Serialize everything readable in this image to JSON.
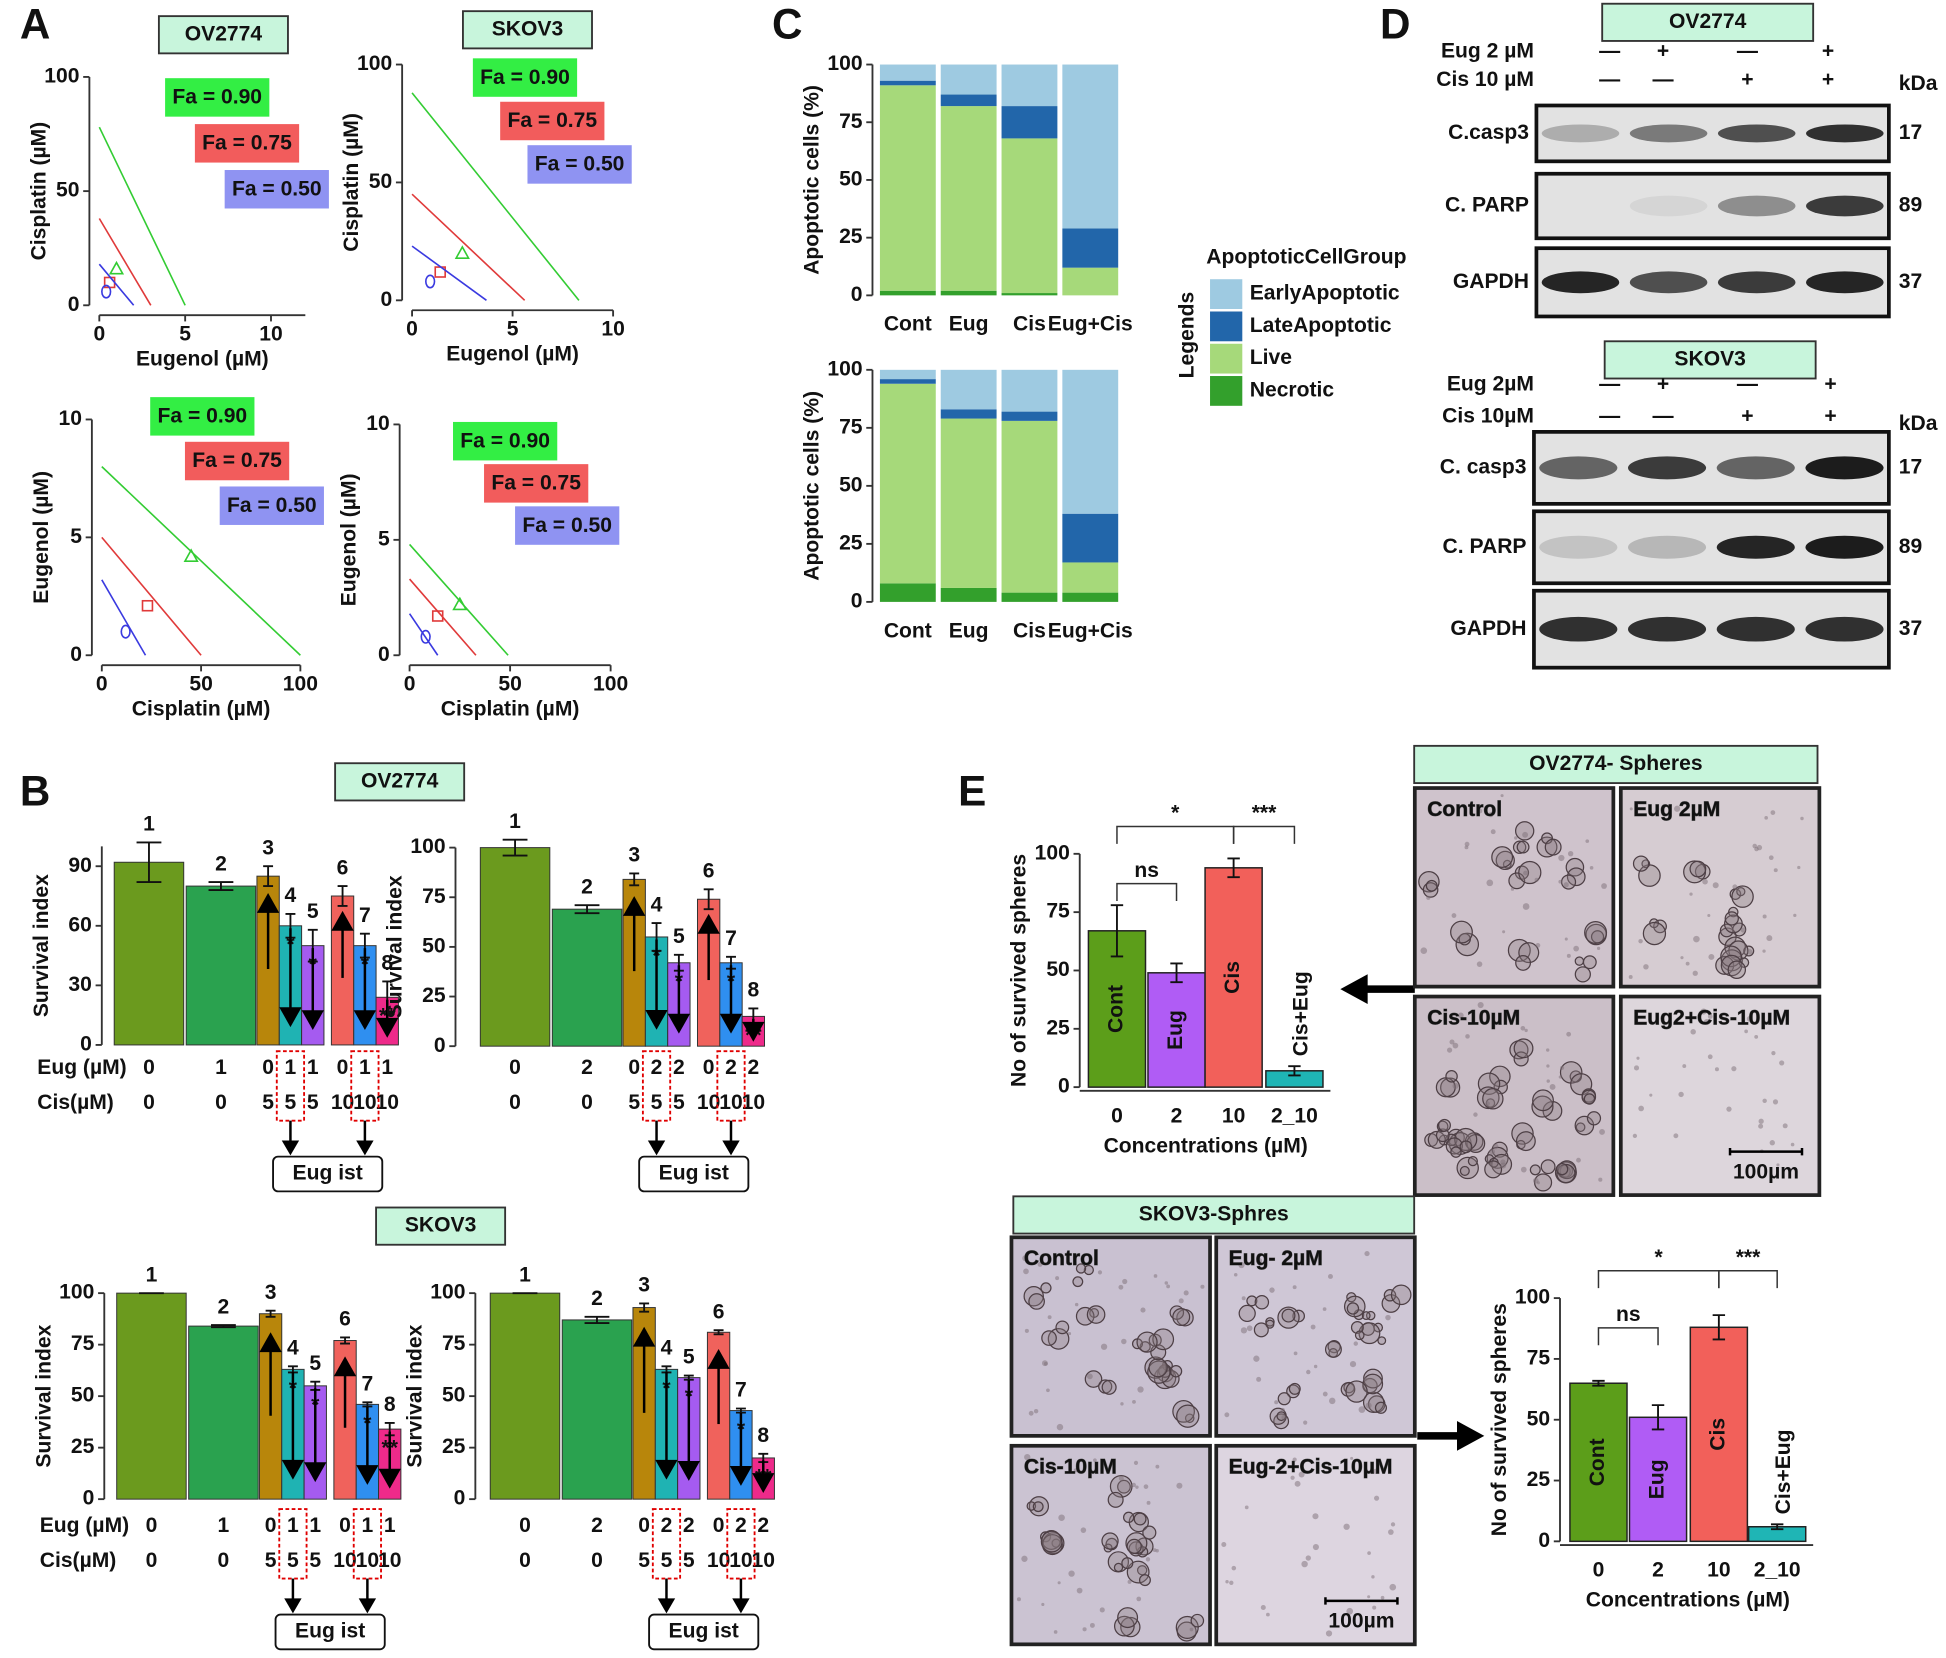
{
  "panel_labels": [
    "A",
    "B",
    "C",
    "D",
    "E"
  ],
  "chart_data": [
    {
      "type": "isobologram",
      "title": "OV2774",
      "xlabel": "Eugenol (µM)",
      "ylabel": "Cisplatin (µM)",
      "xlim": [
        0,
        12
      ],
      "xticks": [
        0,
        5,
        10
      ],
      "ylim": [
        0,
        100
      ],
      "yticks": [
        0,
        50,
        100
      ],
      "series": [
        {
          "name": "Fa = 0.90",
          "color": "#33cc33",
          "box_color": "#33ee44",
          "x": [
            0,
            5
          ],
          "values": [
            78,
            0
          ],
          "marker_x": 1,
          "marker_y": 16
        },
        {
          "name": "Fa = 0.75",
          "color": "#e03a3a",
          "box_color": "#f25c5c",
          "x": [
            0,
            3
          ],
          "values": [
            38,
            0
          ],
          "marker_x": 0.6,
          "marker_y": 10
        },
        {
          "name": "Fa = 0.50",
          "color": "#3a3ae0",
          "box_color": "#8f93f2",
          "x": [
            0,
            2
          ],
          "values": [
            18,
            0
          ],
          "marker_x": 0.4,
          "marker_y": 6
        }
      ]
    },
    {
      "type": "isobologram",
      "title": "SKOV3",
      "xlabel": "Eugenol (µM)",
      "ylabel": "Cisplatin (µM)",
      "xlim": [
        0,
        10
      ],
      "xticks": [
        0,
        5,
        10
      ],
      "ylim": [
        0,
        100
      ],
      "yticks": [
        0,
        50,
        100
      ],
      "series": [
        {
          "name": "Fa = 0.90",
          "color": "#33cc33",
          "box_color": "#33ee44",
          "x": [
            0,
            8.3
          ],
          "values": [
            88,
            0
          ],
          "marker_x": 2.5,
          "marker_y": 20
        },
        {
          "name": "Fa = 0.75",
          "color": "#e03a3a",
          "box_color": "#f25c5c",
          "x": [
            0,
            5.6
          ],
          "values": [
            45,
            0
          ],
          "marker_x": 1.4,
          "marker_y": 12
        },
        {
          "name": "Fa = 0.50",
          "color": "#3a3ae0",
          "box_color": "#8f93f2",
          "x": [
            0,
            3.7
          ],
          "values": [
            23,
            0
          ],
          "marker_x": 0.9,
          "marker_y": 8
        }
      ]
    },
    {
      "type": "isobologram",
      "xlabel": "Cisplatin (µM)",
      "ylabel": "Eugenol (µM)",
      "xlim": [
        0,
        100
      ],
      "xticks": [
        0,
        50,
        100
      ],
      "ylim": [
        0,
        10
      ],
      "yticks": [
        0,
        5,
        10
      ],
      "series": [
        {
          "name": "Fa = 0.90",
          "color": "#33cc33",
          "box_color": "#33ee44",
          "x": [
            0,
            100
          ],
          "values": [
            8,
            0
          ],
          "marker_x": 45,
          "marker_y": 4.2
        },
        {
          "name": "Fa = 0.75",
          "color": "#e03a3a",
          "box_color": "#f25c5c",
          "x": [
            0,
            50
          ],
          "values": [
            5,
            0
          ],
          "marker_x": 23,
          "marker_y": 2.1
        },
        {
          "name": "Fa = 0.50",
          "color": "#3a3ae0",
          "box_color": "#8f93f2",
          "x": [
            0,
            22
          ],
          "values": [
            3.2,
            0
          ],
          "marker_x": 12,
          "marker_y": 1
        }
      ]
    },
    {
      "type": "isobologram",
      "xlabel": "Cisplatin (µM)",
      "ylabel": "Eugenol (µM)",
      "xlim": [
        0,
        100
      ],
      "xticks": [
        0,
        50,
        100
      ],
      "ylim": [
        0,
        10
      ],
      "yticks": [
        0,
        5,
        10
      ],
      "series": [
        {
          "name": "Fa = 0.90",
          "color": "#33cc33",
          "box_color": "#33ee44",
          "x": [
            0,
            49
          ],
          "values": [
            4.8,
            0
          ],
          "marker_x": 25,
          "marker_y": 2.2
        },
        {
          "name": "Fa = 0.75",
          "color": "#e03a3a",
          "box_color": "#f25c5c",
          "x": [
            0,
            33
          ],
          "values": [
            3.3,
            0
          ],
          "marker_x": 14,
          "marker_y": 1.7
        },
        {
          "name": "Fa = 0.50",
          "color": "#3a3ae0",
          "box_color": "#8f93f2",
          "x": [
            0,
            14
          ],
          "values": [
            1.8,
            0
          ],
          "marker_x": 8,
          "marker_y": 0.8
        }
      ]
    },
    {
      "type": "stacked_bar",
      "ylabel": "Apoptotic cells (%)",
      "categories": [
        "Cont",
        "Eug",
        "Cis",
        "Eug+Cis"
      ],
      "ylim": [
        0,
        100
      ],
      "yticks": [
        0,
        25,
        50,
        75,
        100
      ],
      "legend_title": "ApoptoticCellGroup",
      "legend_label": "Legends",
      "series": [
        {
          "name": "EarlyApoptotic",
          "color": "#9ecae1",
          "values": [
            7,
            13,
            18,
            71
          ]
        },
        {
          "name": "LateApoptotic",
          "color": "#2266aa",
          "values": [
            2,
            5,
            14,
            17
          ]
        },
        {
          "name": "Live",
          "color": "#a6d97a",
          "values": [
            89,
            80,
            67,
            12
          ]
        },
        {
          "name": "Necrotic",
          "color": "#33a02c",
          "values": [
            2,
            2,
            1,
            0
          ]
        }
      ]
    },
    {
      "type": "stacked_bar",
      "ylabel": "Apoptotic cells (%)",
      "categories": [
        "Cont",
        "Eug",
        "Cis",
        "Eug+Cis"
      ],
      "ylim": [
        0,
        100
      ],
      "yticks": [
        0,
        25,
        50,
        75,
        100
      ],
      "series": [
        {
          "color": "#9ecae1",
          "values": [
            4,
            17,
            18,
            62
          ]
        },
        {
          "color": "#2266aa",
          "values": [
            2,
            4,
            4,
            21
          ]
        },
        {
          "color": "#a6d97a",
          "values": [
            86,
            73,
            74,
            13
          ]
        },
        {
          "color": "#33a02c",
          "values": [
            8,
            6,
            4,
            4
          ]
        }
      ]
    },
    {
      "type": "bar",
      "title": "OV2774",
      "ylabel": "Survival index",
      "categories": [
        "1",
        "2",
        "3",
        "4",
        "5",
        "6",
        "7",
        "8"
      ],
      "values": [
        92,
        80,
        85,
        60,
        50,
        75,
        50,
        24
      ],
      "errors": [
        10,
        2,
        5,
        6,
        8,
        5,
        6,
        8
      ],
      "colors": [
        "#6b9a1e",
        "#2aa24f",
        "#b8860b",
        "#1fb3b3",
        "#a55bf0",
        "#f0625c",
        "#2f8ff0",
        "#ee2a8a"
      ],
      "label_colors": [
        "#2e7d32",
        "#2e8b57",
        "#8b5a2b",
        "#20999a",
        "#a020f0",
        "#b5452a",
        "#1e6fff",
        "#e0115f"
      ],
      "annotations": [
        null,
        null,
        null,
        "*",
        "*",
        null,
        "*",
        "**"
      ],
      "ylim": [
        0,
        100
      ],
      "yticks": [
        0,
        30,
        60,
        90
      ],
      "eug_label": "Eug (µM)",
      "cis_label": "Cis(µM)",
      "eug": [
        0,
        1,
        0,
        1,
        1,
        0,
        1,
        1
      ],
      "cis": [
        0,
        0,
        5,
        5,
        5,
        10,
        10,
        10
      ],
      "note": "Eug ist"
    },
    {
      "type": "bar",
      "ylabel": "Survival index",
      "categories": [
        "1",
        "2",
        "3",
        "4",
        "5",
        "6",
        "7",
        "8"
      ],
      "values": [
        100,
        69,
        84,
        55,
        42,
        74,
        42,
        15
      ],
      "errors": [
        4,
        2,
        3,
        7,
        4,
        5,
        3,
        4
      ],
      "colors": [
        "#6b9a1e",
        "#2aa24f",
        "#b8860b",
        "#1fb3b3",
        "#a55bf0",
        "#f0625c",
        "#2f8ff0",
        "#ee2a8a"
      ],
      "label_colors": [
        "#2e7d32",
        "#2e8b57",
        "#8b5a2b",
        "#20999a",
        "#a020f0",
        "#b5452a",
        "#1e6fff",
        "#e0115f"
      ],
      "annotations": [
        null,
        null,
        null,
        "*",
        "*",
        null,
        "*",
        "**"
      ],
      "ylim": [
        0,
        100
      ],
      "yticks": [
        0,
        25,
        50,
        75,
        100
      ],
      "eug": [
        0,
        2,
        0,
        2,
        2,
        0,
        2,
        2
      ],
      "cis": [
        0,
        0,
        5,
        5,
        5,
        10,
        10,
        10
      ],
      "note": "Eug ist"
    },
    {
      "type": "bar",
      "title": "SKOV3",
      "ylabel": "Survival index",
      "categories": [
        "1",
        "2",
        "3",
        "4",
        "5",
        "6",
        "7",
        "8"
      ],
      "values": [
        100,
        84,
        90,
        63,
        55,
        77,
        46,
        34
      ],
      "errors": [
        0,
        0.5,
        1.5,
        1.5,
        2,
        1.5,
        1,
        3
      ],
      "colors": [
        "#6b9a1e",
        "#2aa24f",
        "#b8860b",
        "#1fb3b3",
        "#a55bf0",
        "#f0625c",
        "#2f8ff0",
        "#ee2a8a"
      ],
      "label_colors": [
        "#2e7d32",
        "#2e8b57",
        "#8b5a2b",
        "#20999a",
        "#a020f0",
        "#b5452a",
        "#1e6fff",
        "#e0115f"
      ],
      "annotations": [
        null,
        null,
        null,
        "*",
        "*",
        null,
        "*",
        "**"
      ],
      "ylim": [
        0,
        100
      ],
      "yticks": [
        0,
        25,
        50,
        75,
        100
      ],
      "eug_label": "Eug (µM)",
      "cis_label": "Cis(µM)",
      "eug": [
        0,
        1,
        0,
        1,
        1,
        0,
        1,
        1
      ],
      "cis": [
        0,
        0,
        5,
        5,
        5,
        10,
        10,
        10
      ],
      "note": "Eug ist"
    },
    {
      "type": "bar",
      "ylabel": "Survival index",
      "categories": [
        "1",
        "2",
        "3",
        "4",
        "5",
        "6",
        "7",
        "8"
      ],
      "values": [
        100,
        87,
        93,
        63,
        59,
        81,
        43,
        20
      ],
      "errors": [
        0,
        1.5,
        2,
        1.5,
        1,
        1,
        1,
        2
      ],
      "colors": [
        "#6b9a1e",
        "#2aa24f",
        "#b8860b",
        "#1fb3b3",
        "#a55bf0",
        "#f0625c",
        "#2f8ff0",
        "#ee2a8a"
      ],
      "label_colors": [
        "#2e7d32",
        "#2e8b57",
        "#8b5a2b",
        "#20999a",
        "#a020f0",
        "#b5452a",
        "#1e6fff",
        "#e0115f"
      ],
      "annotations": [
        null,
        null,
        null,
        "*",
        "*",
        null,
        "*",
        "**"
      ],
      "ylim": [
        0,
        100
      ],
      "yticks": [
        0,
        25,
        50,
        75,
        100
      ],
      "eug": [
        0,
        2,
        0,
        2,
        2,
        0,
        2,
        2
      ],
      "cis": [
        0,
        0,
        5,
        5,
        5,
        10,
        10,
        10
      ],
      "note": "Eug ist"
    },
    {
      "type": "bar",
      "ylabel": "No of survived spheres",
      "xlabel": "Concentrations (µM)",
      "categories": [
        "0",
        "2",
        "10",
        "2_10"
      ],
      "bar_labels": [
        "Cont",
        "Eug",
        "Cis",
        "Cis+Eug"
      ],
      "values": [
        67,
        49,
        94,
        7
      ],
      "errors": [
        11,
        4,
        4,
        2
      ],
      "colors": [
        "#5c9e1a",
        "#b05cf5",
        "#f2605a",
        "#1fb5b5"
      ],
      "significance": [
        "ns",
        "*",
        "***"
      ],
      "ylim": [
        0,
        100
      ],
      "yticks": [
        0,
        25,
        50,
        75,
        100
      ]
    },
    {
      "type": "bar",
      "ylabel": "No of survived spheres",
      "xlabel": "Concentrations (µM)",
      "categories": [
        "0",
        "2",
        "10",
        "2_10"
      ],
      "bar_labels": [
        "Cont",
        "Eug",
        "Cis",
        "Cis+Eug"
      ],
      "values": [
        65,
        51,
        88,
        6
      ],
      "errors": [
        1,
        5,
        5,
        1
      ],
      "colors": [
        "#5c9e1a",
        "#b05cf5",
        "#f2605a",
        "#1fb5b5"
      ],
      "significance": [
        "ns",
        "*",
        "***"
      ],
      "ylim": [
        0,
        100
      ],
      "yticks": [
        0,
        25,
        50,
        75,
        100
      ]
    }
  ],
  "blots": [
    {
      "title": "OV2774",
      "conditions": [
        {
          "label": "Eug 2 µM",
          "signs": [
            "—",
            "+",
            "—",
            "+"
          ]
        },
        {
          "label": "Cis 10 µM",
          "signs": [
            "—",
            "—",
            "+",
            "+"
          ]
        }
      ],
      "unit": "kDa",
      "rows": [
        {
          "label": "C.casp3",
          "kda": 17
        },
        {
          "label": "C. PARP",
          "kda": 89
        },
        {
          "label": "GAPDH",
          "kda": 37
        }
      ]
    },
    {
      "title": "SKOV3",
      "conditions": [
        {
          "label": "Eug 2µM",
          "signs": [
            "—",
            "+",
            "—",
            "+"
          ]
        },
        {
          "label": "Cis 10µM",
          "signs": [
            "—",
            "—",
            "+",
            "+"
          ]
        }
      ],
      "unit": "kDa",
      "rows": [
        {
          "label": "C. casp3",
          "kda": 17
        },
        {
          "label": "C. PARP",
          "kda": 89
        },
        {
          "label": "GAPDH",
          "kda": 37
        }
      ]
    }
  ],
  "micrographs": [
    {
      "title": "OV2774- Spheres",
      "images": [
        "Control",
        "Eug 2µM",
        "Cis-10µM",
        "Eug2+Cis-10µM"
      ],
      "scale_bar": "100µm"
    },
    {
      "title": "SKOV3-Sphres",
      "images": [
        "Control",
        "Eug- 2µM",
        "Cis-10µM",
        "Eug-2+Cis-10µM"
      ],
      "scale_bar": "100µm"
    }
  ]
}
